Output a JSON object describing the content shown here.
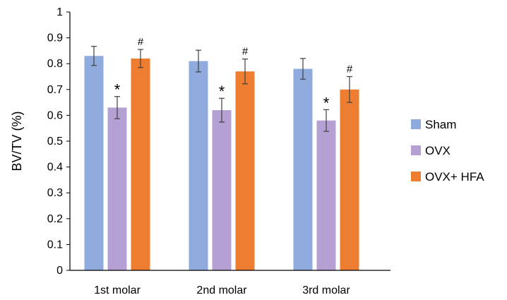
{
  "chart_data": {
    "type": "bar",
    "title": "",
    "xlabel": "",
    "ylabel": "BV/TV (%)",
    "ylim": [
      0,
      1
    ],
    "yticks": [
      0,
      0.1,
      0.2,
      0.3,
      0.4,
      0.5,
      0.6,
      0.7,
      0.8,
      0.9,
      1
    ],
    "ytick_labels": [
      "0",
      "0.1",
      "0.2",
      "0.3",
      "0.4",
      "0.5",
      "0.6",
      "0.7",
      "0.8",
      "0.9",
      "1"
    ],
    "categories": [
      "1st molar",
      "2nd molar",
      "3rd molar"
    ],
    "grid": false,
    "legend_position": "right",
    "series": [
      {
        "name": "Sham",
        "color": "#8FAADC",
        "values": [
          0.83,
          0.81,
          0.78
        ],
        "errors": [
          0.037,
          0.042,
          0.04
        ],
        "annotations": [
          "",
          "",
          ""
        ]
      },
      {
        "name": "OVX",
        "color": "#B4A0D2",
        "values": [
          0.63,
          0.62,
          0.58
        ],
        "errors": [
          0.043,
          0.046,
          0.042
        ],
        "annotations": [
          "*",
          "*",
          "*"
        ]
      },
      {
        "name": "OVX+ HFA",
        "color": "#ED7D31",
        "values": [
          0.82,
          0.77,
          0.7
        ],
        "errors": [
          0.035,
          0.048,
          0.05
        ],
        "annotations": [
          "#",
          "#",
          "#"
        ]
      }
    ]
  }
}
